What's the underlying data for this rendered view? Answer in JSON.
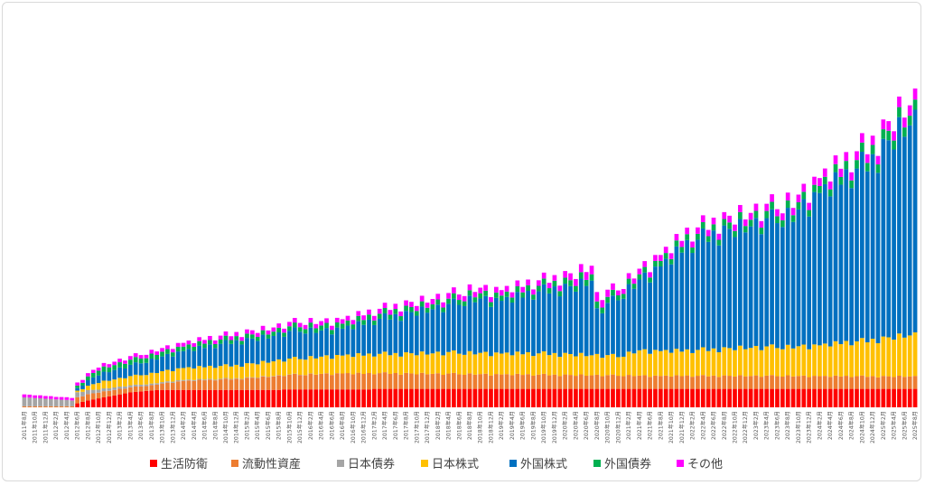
{
  "chart_data": {
    "type": "bar",
    "stacked": true,
    "title": "",
    "xlabel": "",
    "ylabel": "",
    "grid": false,
    "legend_position": "bottom",
    "start": [
      2011,
      8
    ],
    "tick_labels": [
      "2011年8月",
      "2011年10月",
      "2011年12月",
      "2012年2月",
      "2012年4月",
      "2012年6月",
      "2012年8月",
      "2012年10月",
      "2012年12月",
      "2013年2月",
      "2013年4月",
      "2013年6月",
      "2013年8月",
      "2013年10月",
      "2013年12月",
      "2014年2月",
      "2014年4月",
      "2014年6月",
      "2014年8月",
      "2014年10月",
      "2014年12月",
      "2015年2月",
      "2015年4月",
      "2015年6月",
      "2015年8月",
      "2015年10月",
      "2015年12月",
      "2016年2月",
      "2016年4月",
      "2016年6月",
      "2016年8月",
      "2016年10月",
      "2016年12月",
      "2017年2月",
      "2017年4月",
      "2017年6月",
      "2017年8月",
      "2017年10月",
      "2017年12月",
      "2018年2月",
      "2018年4月",
      "2018年6月",
      "2018年8月",
      "2018年10月",
      "2018年12月",
      "2019年2月",
      "2019年4月",
      "2019年6月",
      "2019年8月",
      "2019年10月",
      "2019年12月",
      "2020年2月",
      "2020年4月",
      "2020年6月",
      "2020年8月",
      "2020年10月",
      "2020年12月",
      "2021年2月",
      "2021年4月",
      "2021年6月",
      "2021年8月",
      "2021年10月",
      "2021年12月",
      "2022年2月",
      "2022年4月",
      "2022年6月",
      "2022年8月",
      "2022年10月",
      "2022年12月",
      "2023年2月",
      "2023年4月",
      "2023年6月",
      "2023年8月",
      "2023年10月",
      "2023年12月",
      "2024年2月",
      "2024年4月",
      "2024年6月",
      "2024年8月",
      "2024年10月",
      "2024年12月",
      "2025年2月",
      "2025年4月",
      "2025年6月",
      "2025年8月"
    ],
    "series": [
      {
        "name": "生活防衛",
        "color": "#ff0000",
        "anchors": [
          [
            0,
            0
          ],
          [
            9,
            0
          ],
          [
            10,
            8
          ],
          [
            12,
            14
          ],
          [
            14,
            18
          ],
          [
            16,
            22
          ],
          [
            20,
            30
          ],
          [
            24,
            34
          ],
          [
            26,
            35
          ],
          [
            48,
            35
          ],
          [
            49,
            36
          ],
          [
            65,
            36
          ],
          [
            66,
            37
          ],
          [
            170,
            37
          ],
          [
            171,
            53
          ],
          [
            180,
            52
          ]
        ]
      },
      {
        "name": "流動性資産",
        "color": "#ed7d31",
        "anchors": [
          [
            0,
            2
          ],
          [
            9,
            2
          ],
          [
            10,
            12
          ],
          [
            14,
            12
          ],
          [
            20,
            10
          ],
          [
            24,
            10
          ],
          [
            30,
            18
          ],
          [
            40,
            22
          ],
          [
            48,
            28
          ],
          [
            60,
            32
          ],
          [
            80,
            30
          ],
          [
            100,
            28
          ],
          [
            120,
            26
          ],
          [
            140,
            26
          ],
          [
            160,
            25
          ],
          [
            170,
            25
          ],
          [
            171,
            55
          ],
          [
            172,
            48
          ],
          [
            180,
            44
          ]
        ]
      },
      {
        "name": "日本債券",
        "color": "#a5a5a5",
        "anchors": [
          [
            0,
            18
          ],
          [
            9,
            12
          ],
          [
            10,
            10
          ],
          [
            14,
            6
          ],
          [
            20,
            4
          ],
          [
            30,
            2
          ],
          [
            40,
            1
          ],
          [
            60,
            0
          ],
          [
            180,
            0
          ]
        ]
      },
      {
        "name": "日本株式",
        "color": "#ffc000",
        "anchors": [
          [
            0,
            0
          ],
          [
            9,
            0
          ],
          [
            10,
            3
          ],
          [
            14,
            14
          ],
          [
            20,
            18
          ],
          [
            30,
            24
          ],
          [
            40,
            26
          ],
          [
            60,
            36
          ],
          [
            80,
            42
          ],
          [
            100,
            42
          ],
          [
            108,
            40
          ],
          [
            112,
            38
          ],
          [
            116,
            50
          ],
          [
            125,
            50
          ],
          [
            135,
            56
          ],
          [
            145,
            58
          ],
          [
            150,
            62
          ],
          [
            158,
            70
          ],
          [
            165,
            80
          ],
          [
            170,
            86
          ],
          [
            171,
            90
          ],
          [
            172,
            80
          ],
          [
            180,
            110
          ]
        ]
      },
      {
        "name": "外国株式",
        "color": "#0070c0",
        "anchors": [
          [
            0,
            0
          ],
          [
            9,
            0
          ],
          [
            10,
            5
          ],
          [
            14,
            16
          ],
          [
            20,
            22
          ],
          [
            30,
            34
          ],
          [
            40,
            48
          ],
          [
            46,
            50
          ],
          [
            52,
            56
          ],
          [
            56,
            52
          ],
          [
            60,
            54
          ],
          [
            70,
            76
          ],
          [
            80,
            94
          ],
          [
            85,
            108
          ],
          [
            90,
            106
          ],
          [
            95,
            118
          ],
          [
            100,
            130
          ],
          [
            104,
            136
          ],
          [
            107,
            150
          ],
          [
            108,
            88
          ],
          [
            112,
            116
          ],
          [
            116,
            140
          ],
          [
            120,
            170
          ],
          [
            125,
            210
          ],
          [
            130,
            230
          ],
          [
            135,
            240
          ],
          [
            140,
            250
          ],
          [
            145,
            262
          ],
          [
            150,
            306
          ],
          [
            155,
            330
          ],
          [
            160,
            360
          ],
          [
            165,
            410
          ],
          [
            170,
            440
          ],
          [
            172,
            420
          ],
          [
            176,
            430
          ],
          [
            180,
            480
          ]
        ]
      },
      {
        "name": "外国債券",
        "color": "#00b050",
        "anchors": [
          [
            0,
            0
          ],
          [
            9,
            0
          ],
          [
            10,
            5
          ],
          [
            14,
            10
          ],
          [
            20,
            10
          ],
          [
            40,
            8
          ],
          [
            60,
            10
          ],
          [
            80,
            10
          ],
          [
            100,
            11
          ],
          [
            108,
            13
          ],
          [
            112,
            10
          ],
          [
            120,
            11
          ],
          [
            130,
            12
          ],
          [
            140,
            14
          ],
          [
            150,
            14
          ],
          [
            160,
            18
          ],
          [
            170,
            20
          ],
          [
            175,
            8
          ],
          [
            180,
            8
          ]
        ]
      },
      {
        "name": "その他",
        "color": "#ff00ff",
        "anchors": [
          [
            0,
            6
          ],
          [
            9,
            5
          ],
          [
            10,
            6
          ],
          [
            20,
            7
          ],
          [
            40,
            8
          ],
          [
            60,
            9
          ],
          [
            80,
            11
          ],
          [
            100,
            11
          ],
          [
            108,
            18
          ],
          [
            112,
            10
          ],
          [
            120,
            12
          ],
          [
            130,
            13
          ],
          [
            140,
            14
          ],
          [
            150,
            16
          ],
          [
            160,
            18
          ],
          [
            170,
            22
          ],
          [
            180,
            24
          ]
        ]
      }
    ],
    "wiggle": [
      0,
      2,
      -3,
      4,
      -1,
      3,
      -4,
      1,
      5,
      -2,
      2,
      -5,
      3,
      1,
      -3,
      4,
      -2,
      0,
      3,
      -4,
      2,
      5,
      -1,
      -3,
      4,
      -2,
      1,
      3,
      -5,
      2
    ]
  }
}
